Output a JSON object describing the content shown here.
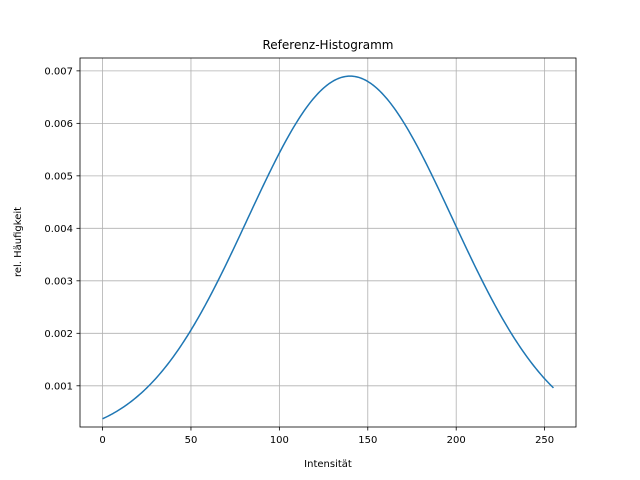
{
  "chart_data": {
    "type": "line",
    "title": "Referenz-Histogramm",
    "xlabel": "Intensität",
    "ylabel": "rel. Häufigkeit",
    "xlim": [
      -12.75,
      267.75
    ],
    "ylim": [
      0.000215,
      0.007245
    ],
    "xticks": [
      0,
      50,
      100,
      150,
      200,
      250
    ],
    "yticks": [
      0.001,
      0.002,
      0.003,
      0.004,
      0.005,
      0.006,
      0.007
    ],
    "ytick_labels": [
      "0.001",
      "0.002",
      "0.003",
      "0.004",
      "0.005",
      "0.006",
      "0.007"
    ],
    "grid": true,
    "series": [
      {
        "name": "",
        "color": "#1f77b4",
        "gaussian": {
          "mean": 140,
          "sigma": 57.9,
          "peak": 0.0069,
          "x_start": 0,
          "x_end": 255
        },
        "x": [
          0,
          20,
          40,
          60,
          80,
          100,
          120,
          140,
          160,
          180,
          200,
          220,
          240,
          255
        ],
        "y": [
          0.00045,
          0.00094,
          0.00171,
          0.00265,
          0.00406,
          0.00543,
          0.00646,
          0.0069,
          0.00646,
          0.00543,
          0.0041,
          0.00278,
          0.00169,
          0.0011
        ]
      }
    ]
  }
}
